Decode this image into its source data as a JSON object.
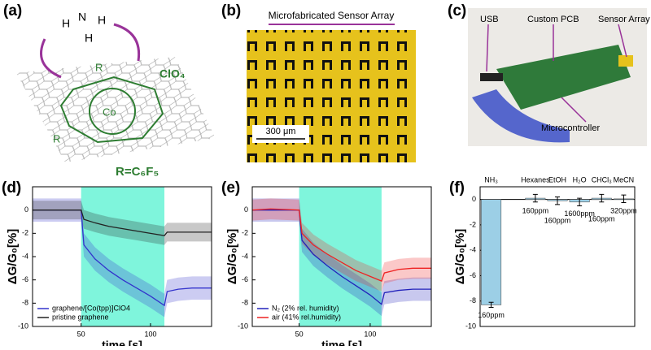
{
  "panel_a": {
    "label": "(a)",
    "ammonia": [
      "N",
      "H",
      "H",
      "H"
    ],
    "metal": "Co",
    "r_group": "R",
    "counterion": "ClO₄",
    "substituent": "R=C₆F₅"
  },
  "panel_b": {
    "label": "(b)",
    "title": "Microfabricated Sensor Array",
    "scale_bar": "300 μm"
  },
  "panel_c": {
    "label": "(c)",
    "callouts": [
      "USB",
      "Custom PCB",
      "Sensor Array",
      "Microcontroller"
    ]
  },
  "chart_data": [
    {
      "type": "line",
      "panel_label": "(d)",
      "xlabel": "time [s]",
      "ylabel": "ΔG/G₀[%]",
      "x": [
        15,
        30,
        50,
        52,
        60,
        70,
        80,
        90,
        100,
        110,
        112,
        120,
        130,
        144
      ],
      "series": [
        {
          "name": "graphene/[Co(tpp)]ClO4",
          "color": "#3333cc",
          "error": 1.0,
          "values": [
            0,
            0,
            0,
            -3,
            -4.2,
            -5.2,
            -6,
            -6.7,
            -7.4,
            -8.2,
            -7,
            -6.8,
            -6.7,
            -6.7
          ]
        },
        {
          "name": "pristine graphene",
          "color": "#222222",
          "error": 0.8,
          "values": [
            0,
            0,
            0,
            -0.8,
            -1.1,
            -1.4,
            -1.6,
            -1.8,
            -2,
            -2.2,
            -1.9,
            -1.9,
            -1.9,
            -1.9
          ]
        }
      ],
      "highlight": [
        50,
        110
      ],
      "highlight_color": "#7ff5dc",
      "xlim": [
        15,
        144
      ],
      "xticks": [
        50,
        100
      ],
      "ylim": [
        -10,
        2
      ],
      "yticks": [
        0,
        -2,
        -4,
        -6,
        -8,
        -10
      ],
      "legend": "lower left"
    },
    {
      "type": "line",
      "panel_label": "(e)",
      "xlabel": "time [s]",
      "ylabel": "ΔG/G₀[%]",
      "x": [
        17,
        30,
        50,
        52,
        60,
        70,
        80,
        90,
        100,
        108,
        110,
        120,
        130,
        143
      ],
      "series": [
        {
          "name": "N₂ (2% rel. humidity)",
          "color": "#2222bb",
          "error": 1.0,
          "values": [
            0,
            0,
            0,
            -2.6,
            -3.8,
            -4.8,
            -5.7,
            -6.5,
            -7.3,
            -8.1,
            -7.1,
            -6.9,
            -6.8,
            -6.8
          ]
        },
        {
          "name": "air (41% rel.humidity)",
          "color": "#ee2222",
          "error": 0.9,
          "values": [
            0,
            0.1,
            0,
            -2,
            -3,
            -3.8,
            -4.5,
            -5.2,
            -5.7,
            -6.1,
            -5.4,
            -5.1,
            -5,
            -5
          ]
        }
      ],
      "highlight": [
        50,
        108
      ],
      "highlight_color": "#7ff5dc",
      "xlim": [
        17,
        143
      ],
      "xticks": [
        50,
        100
      ],
      "ylim": [
        -10,
        2
      ],
      "yticks": [
        0,
        -2,
        -4,
        -6,
        -8,
        -10
      ],
      "legend": "lower left"
    },
    {
      "type": "bar",
      "panel_label": "(f)",
      "ylabel": "ΔG/G₀[%]",
      "categories": [
        "NH₃",
        "Hexanes",
        "EtOH",
        "H₂O",
        "CHCl₃",
        "MeCN"
      ],
      "values": [
        -8.3,
        0.1,
        -0.1,
        -0.2,
        0.1,
        0.05
      ],
      "errors": [
        0.2,
        0.3,
        0.3,
        0.3,
        0.3,
        0.3
      ],
      "concentrations": [
        "160ppm",
        "160ppm",
        "160ppm",
        "1600ppm",
        "160ppm",
        "320ppm"
      ],
      "color": "#9ccfe6",
      "ylim": [
        -10,
        1
      ],
      "yticks": [
        0,
        -2,
        -4,
        -6,
        -8,
        -10
      ]
    }
  ]
}
